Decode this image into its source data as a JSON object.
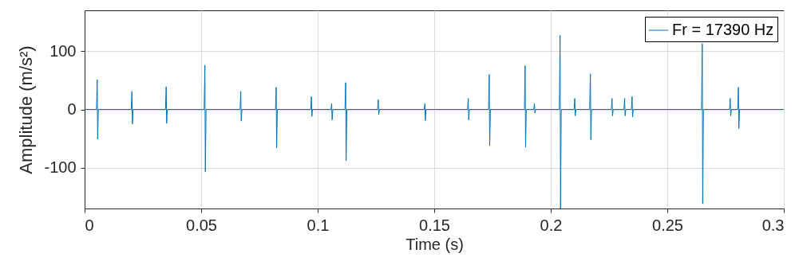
{
  "chart_data": {
    "type": "line",
    "xlabel": "Time (s)",
    "ylabel": "Amplitude (m/s²)",
    "xlim": [
      0,
      0.3
    ],
    "xticks": [
      0,
      0.05,
      0.1,
      0.15,
      0.2,
      0.25,
      0.3
    ],
    "ylim": [
      -170,
      170
    ],
    "yticks": [
      -100,
      0,
      100
    ],
    "grid": true,
    "legend": "top right",
    "marker": "none",
    "line_style": "solid",
    "series": [
      {
        "name": "Fr = 17390 Hz",
        "color": "#0072bd",
        "x": [
          0,
          0.0051,
          0.0054,
          0.0056,
          0.0059,
          0.02,
          0.0203,
          0.0205,
          0.0208,
          0.0347,
          0.035,
          0.0352,
          0.0355,
          0.0513,
          0.0516,
          0.0518,
          0.0521,
          0.0667,
          0.067,
          0.0672,
          0.0675,
          0.0819,
          0.0822,
          0.0824,
          0.0827,
          0.097,
          0.0973,
          0.0975,
          0.0978,
          0.1057,
          0.106,
          0.1062,
          0.1065,
          0.1117,
          0.112,
          0.1122,
          0.1125,
          0.1257,
          0.126,
          0.1262,
          0.1265,
          0.1457,
          0.146,
          0.1462,
          0.1465,
          0.1643,
          0.1646,
          0.1648,
          0.1651,
          0.1733,
          0.1736,
          0.1738,
          0.1741,
          0.1887,
          0.189,
          0.1892,
          0.1895,
          0.1927,
          0.193,
          0.1932,
          0.1935,
          0.2037,
          0.204,
          0.2042,
          0.2045,
          0.21,
          0.2103,
          0.2105,
          0.2108,
          0.2167,
          0.217,
          0.2172,
          0.2175,
          0.226,
          0.2263,
          0.2265,
          0.2268,
          0.2314,
          0.2317,
          0.2319,
          0.2322,
          0.2346,
          0.2349,
          0.2351,
          0.2354,
          0.2647,
          0.265,
          0.2652,
          0.2655,
          0.2767,
          0.277,
          0.2772,
          0.2775,
          0.2802,
          0.2805,
          0.2807,
          0.281,
          0.3
        ],
        "values": [
          0,
          0,
          51,
          -51,
          0,
          0,
          31,
          -25,
          0,
          0,
          39,
          -24,
          0,
          0,
          76,
          -107,
          0,
          0,
          31,
          -20,
          0,
          0,
          38,
          -66,
          0,
          0,
          22,
          -12,
          0,
          0,
          10,
          -18,
          0,
          0,
          46,
          -88,
          0,
          0,
          17,
          -9,
          0,
          0,
          10,
          -19,
          0,
          0,
          19,
          -18,
          0,
          0,
          60,
          -62,
          0,
          0,
          75,
          -65,
          0,
          0,
          10,
          -6,
          0,
          0,
          127,
          -170,
          0,
          0,
          19,
          -11,
          0,
          0,
          61,
          -52,
          0,
          0,
          19,
          -11,
          0,
          0,
          19,
          -11,
          0,
          0,
          22,
          -13,
          0,
          0,
          113,
          -162,
          0,
          0,
          19,
          -11,
          0,
          0,
          38,
          -33,
          0,
          0
        ]
      }
    ]
  }
}
